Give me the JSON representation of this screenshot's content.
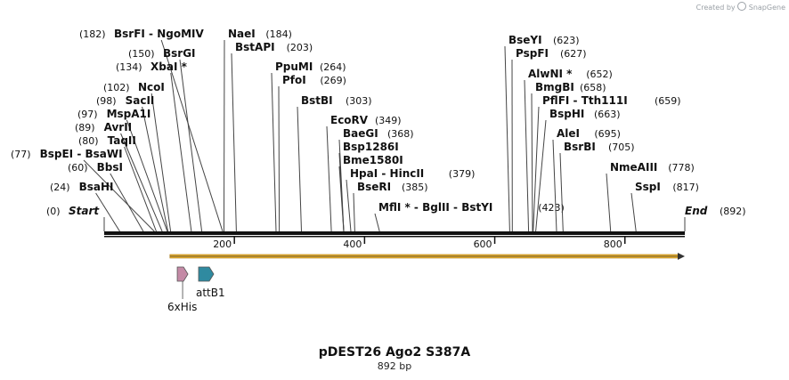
{
  "credit": {
    "prefix": "Created by",
    "brand": "SnapGene"
  },
  "plasmid": {
    "name": "pDEST26 Ago2 S387A",
    "length_label": "892 bp",
    "length": 892
  },
  "ends": {
    "start_label": "Start",
    "start_pos": "(0)",
    "end_label": "End",
    "end_pos": "(892)"
  },
  "ruler_ticks": [
    {
      "pos": 200,
      "label": "200"
    },
    {
      "pos": 400,
      "label": "400"
    },
    {
      "pos": 600,
      "label": "600"
    },
    {
      "pos": 800,
      "label": "800"
    }
  ],
  "sites": [
    {
      "names": [
        "BsrFI",
        "NgoMIV"
      ],
      "pos": 182,
      "pos_label": "(182)",
      "num_first": true
    },
    {
      "names": [
        "NaeI"
      ],
      "pos": 184,
      "pos_label": "(184)"
    },
    {
      "names": [
        "BstAPI"
      ],
      "pos": 203,
      "pos_label": "(203)"
    },
    {
      "names": [
        "BsrGI"
      ],
      "pos": 150,
      "pos_label": "(150)",
      "num_first": true
    },
    {
      "names": [
        "XbaI *"
      ],
      "pos": 134,
      "pos_label": "(134)",
      "num_first": true
    },
    {
      "names": [
        "PpuMI"
      ],
      "pos": 264,
      "pos_label": "(264)"
    },
    {
      "names": [
        "PfoI"
      ],
      "pos": 269,
      "pos_label": "(269)"
    },
    {
      "names": [
        "NcoI"
      ],
      "pos": 102,
      "pos_label": "(102)",
      "num_first": true
    },
    {
      "names": [
        "SacII"
      ],
      "pos": 98,
      "pos_label": "(98)",
      "num_first": true
    },
    {
      "names": [
        "BstBI"
      ],
      "pos": 303,
      "pos_label": "(303)"
    },
    {
      "names": [
        "MspA1I"
      ],
      "pos": 97,
      "pos_label": "(97)",
      "num_first": true
    },
    {
      "names": [
        "EcoRV"
      ],
      "pos": 349,
      "pos_label": "(349)"
    },
    {
      "names": [
        "AvrII"
      ],
      "pos": 89,
      "pos_label": "(89)",
      "num_first": true
    },
    {
      "names": [
        "BaeGI"
      ],
      "pos": 368,
      "pos_label": "(368)"
    },
    {
      "names": [
        "TaqII"
      ],
      "pos": 80,
      "pos_label": "(80)",
      "num_first": true
    },
    {
      "names": [
        "Bsp1286I"
      ],
      "pos": 368,
      "pos_label": ""
    },
    {
      "names": [
        "BspEI",
        "BsaWI"
      ],
      "pos": 77,
      "pos_label": "(77)",
      "num_first": true
    },
    {
      "names": [
        "Bme1580I"
      ],
      "pos": 368,
      "pos_label": ""
    },
    {
      "names": [
        "BbsI"
      ],
      "pos": 60,
      "pos_label": "(60)",
      "num_first": true
    },
    {
      "names": [
        "HpaI",
        "HincII"
      ],
      "pos": 379,
      "pos_label": "(379)"
    },
    {
      "names": [
        "BsaHI"
      ],
      "pos": 24,
      "pos_label": "(24)",
      "num_first": true
    },
    {
      "names": [
        "BseRI"
      ],
      "pos": 385,
      "pos_label": "(385)"
    },
    {
      "names": [
        "MflI *",
        "BglII",
        "BstYI"
      ],
      "pos": 423,
      "pos_label": "(423)"
    },
    {
      "names": [
        "BseYI"
      ],
      "pos": 623,
      "pos_label": "(623)"
    },
    {
      "names": [
        "PspFI"
      ],
      "pos": 627,
      "pos_label": "(627)"
    },
    {
      "names": [
        "AlwNI *"
      ],
      "pos": 652,
      "pos_label": "(652)"
    },
    {
      "names": [
        "BmgBI"
      ],
      "pos": 658,
      "pos_label": "(658)"
    },
    {
      "names": [
        "PflFI",
        "Tth111I"
      ],
      "pos": 659,
      "pos_label": "(659)"
    },
    {
      "names": [
        "BspHI"
      ],
      "pos": 663,
      "pos_label": "(663)"
    },
    {
      "names": [
        "AleI"
      ],
      "pos": 695,
      "pos_label": "(695)"
    },
    {
      "names": [
        "BsrBI"
      ],
      "pos": 705,
      "pos_label": "(705)"
    },
    {
      "names": [
        "NmeAIII"
      ],
      "pos": 778,
      "pos_label": "(778)"
    },
    {
      "names": [
        "SspI"
      ],
      "pos": 817,
      "pos_label": "(817)"
    }
  ],
  "features": [
    {
      "name": "6xHis",
      "start": 115,
      "end": 135,
      "color": "#c48aa6"
    },
    {
      "name": "attB1",
      "start": 145,
      "end": 170,
      "color": "#2f8aa0"
    }
  ],
  "orf": {
    "start": 101,
    "end": 892,
    "color": "#f0b630"
  }
}
